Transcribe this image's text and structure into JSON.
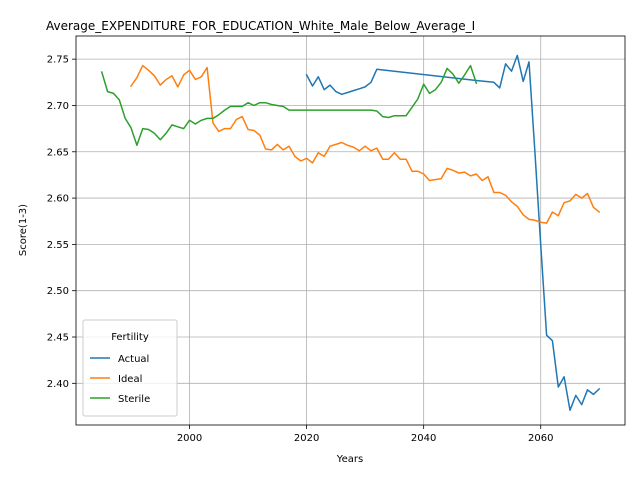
{
  "chart_data": {
    "type": "line",
    "title": "Average_EXPENDITURE_FOR_EDUCATION_White_Male_Below_Average_I",
    "xlabel": "Years",
    "ylabel": "Score(1-3)",
    "xlim": [
      2070,
      2075
    ],
    "ylim": [
      2.355,
      2.775
    ],
    "grid": true,
    "legend": {
      "title": "Fertility",
      "placement": "lower-left"
    },
    "x_ticks": [
      2000,
      2020,
      2040,
      2060
    ],
    "y_ticks": [
      2.4,
      2.45,
      2.5,
      2.55,
      2.6,
      2.65,
      2.7,
      2.75
    ],
    "x_tick_labels": [
      "2000",
      "2020",
      "2040",
      "2060"
    ],
    "y_tick_labels": [
      "2.40",
      "2.45",
      "2.50",
      "2.55",
      "2.60",
      "2.65",
      "2.70",
      "2.75"
    ],
    "series": [
      {
        "name": "Actual",
        "color": "#1f77b4",
        "points": [
          [
            2020,
            2.733
          ],
          [
            2021,
            2.721
          ],
          [
            2022,
            2.731
          ],
          [
            2023,
            2.717
          ],
          [
            2024,
            2.722
          ],
          [
            2025,
            2.715
          ],
          [
            2026,
            2.712
          ],
          [
            2027,
            2.714
          ],
          [
            2028,
            2.716
          ],
          [
            2029,
            2.718
          ],
          [
            2030,
            2.72
          ],
          [
            2031,
            2.725
          ],
          [
            2032,
            2.739
          ],
          [
            2049,
            2.727
          ],
          [
            2052,
            2.725
          ],
          [
            2053,
            2.719
          ],
          [
            2054,
            2.745
          ],
          [
            2055,
            2.737
          ],
          [
            2056,
            2.754
          ],
          [
            2057,
            2.726
          ],
          [
            2058,
            2.747
          ],
          [
            2059,
            2.65
          ],
          [
            2060,
            2.55
          ],
          [
            2061,
            2.452
          ],
          [
            2062,
            2.446
          ],
          [
            2063,
            2.396
          ],
          [
            2064,
            2.407
          ],
          [
            2065,
            2.371
          ],
          [
            2066,
            2.387
          ],
          [
            2067,
            2.377
          ],
          [
            2068,
            2.393
          ],
          [
            2069,
            2.388
          ],
          [
            2070,
            2.394
          ]
        ]
      },
      {
        "name": "Ideal",
        "color": "#ff7f0e",
        "points": [
          [
            1990,
            2.721
          ],
          [
            1991,
            2.73
          ],
          [
            1992,
            2.743
          ],
          [
            1993,
            2.738
          ],
          [
            1994,
            2.732
          ],
          [
            1995,
            2.722
          ],
          [
            1996,
            2.728
          ],
          [
            1997,
            2.732
          ],
          [
            1998,
            2.72
          ],
          [
            1999,
            2.733
          ],
          [
            2000,
            2.738
          ],
          [
            2001,
            2.728
          ],
          [
            2002,
            2.731
          ],
          [
            2003,
            2.741
          ],
          [
            2004,
            2.681
          ],
          [
            2005,
            2.672
          ],
          [
            2006,
            2.675
          ],
          [
            2007,
            2.675
          ],
          [
            2008,
            2.685
          ],
          [
            2009,
            2.688
          ],
          [
            2010,
            2.674
          ],
          [
            2011,
            2.673
          ],
          [
            2012,
            2.668
          ],
          [
            2013,
            2.653
          ],
          [
            2014,
            2.652
          ],
          [
            2015,
            2.658
          ],
          [
            2016,
            2.652
          ],
          [
            2017,
            2.656
          ],
          [
            2018,
            2.645
          ],
          [
            2019,
            2.64
          ],
          [
            2020,
            2.643
          ],
          [
            2021,
            2.638
          ],
          [
            2022,
            2.649
          ],
          [
            2023,
            2.645
          ],
          [
            2024,
            2.656
          ],
          [
            2025,
            2.658
          ],
          [
            2026,
            2.66
          ],
          [
            2027,
            2.657
          ],
          [
            2028,
            2.655
          ],
          [
            2029,
            2.651
          ],
          [
            2030,
            2.656
          ],
          [
            2031,
            2.651
          ],
          [
            2032,
            2.654
          ],
          [
            2033,
            2.642
          ],
          [
            2034,
            2.642
          ],
          [
            2035,
            2.649
          ],
          [
            2036,
            2.642
          ],
          [
            2037,
            2.642
          ],
          [
            2038,
            2.629
          ],
          [
            2039,
            2.629
          ],
          [
            2040,
            2.626
          ],
          [
            2041,
            2.619
          ],
          [
            2042,
            2.62
          ],
          [
            2043,
            2.621
          ],
          [
            2044,
            2.632
          ],
          [
            2045,
            2.63
          ],
          [
            2046,
            2.627
          ],
          [
            2047,
            2.628
          ],
          [
            2048,
            2.624
          ],
          [
            2049,
            2.626
          ],
          [
            2050,
            2.619
          ],
          [
            2051,
            2.623
          ],
          [
            2052,
            2.606
          ],
          [
            2053,
            2.606
          ],
          [
            2054,
            2.603
          ],
          [
            2055,
            2.596
          ],
          [
            2056,
            2.591
          ],
          [
            2057,
            2.582
          ],
          [
            2058,
            2.577
          ],
          [
            2059,
            2.576
          ],
          [
            2060,
            2.574
          ],
          [
            2061,
            2.573
          ],
          [
            2062,
            2.585
          ],
          [
            2063,
            2.581
          ],
          [
            2064,
            2.595
          ],
          [
            2065,
            2.597
          ],
          [
            2066,
            2.604
          ],
          [
            2067,
            2.6
          ],
          [
            2068,
            2.605
          ],
          [
            2069,
            2.59
          ],
          [
            2070,
            2.585
          ]
        ]
      },
      {
        "name": "Sterile",
        "color": "#2ca02c",
        "points": [
          [
            1985,
            2.736
          ],
          [
            1986,
            2.715
          ],
          [
            1987,
            2.713
          ],
          [
            1988,
            2.706
          ],
          [
            1989,
            2.686
          ],
          [
            1990,
            2.676
          ],
          [
            1991,
            2.657
          ],
          [
            1992,
            2.675
          ],
          [
            1993,
            2.674
          ],
          [
            1994,
            2.67
          ],
          [
            1995,
            2.663
          ],
          [
            1996,
            2.67
          ],
          [
            1997,
            2.679
          ],
          [
            1998,
            2.677
          ],
          [
            1999,
            2.675
          ],
          [
            2000,
            2.684
          ],
          [
            2001,
            2.68
          ],
          [
            2002,
            2.684
          ],
          [
            2003,
            2.686
          ],
          [
            2004,
            2.686
          ],
          [
            2005,
            2.69
          ],
          [
            2006,
            2.695
          ],
          [
            2007,
            2.699
          ],
          [
            2008,
            2.699
          ],
          [
            2009,
            2.699
          ],
          [
            2010,
            2.703
          ],
          [
            2011,
            2.7
          ],
          [
            2012,
            2.703
          ],
          [
            2013,
            2.703
          ],
          [
            2014,
            2.701
          ],
          [
            2015,
            2.7
          ],
          [
            2016,
            2.699
          ],
          [
            2017,
            2.695
          ],
          [
            2018,
            2.695
          ],
          [
            2019,
            2.695
          ],
          [
            2020,
            2.695
          ],
          [
            2031,
            2.695
          ],
          [
            2032,
            2.694
          ],
          [
            2033,
            2.688
          ],
          [
            2034,
            2.687
          ],
          [
            2035,
            2.689
          ],
          [
            2036,
            2.689
          ],
          [
            2037,
            2.689
          ],
          [
            2038,
            2.698
          ],
          [
            2039,
            2.707
          ],
          [
            2040,
            2.723
          ],
          [
            2041,
            2.713
          ],
          [
            2042,
            2.717
          ],
          [
            2043,
            2.725
          ],
          [
            2044,
            2.74
          ],
          [
            2045,
            2.734
          ],
          [
            2046,
            2.724
          ],
          [
            2047,
            2.733
          ],
          [
            2048,
            2.743
          ],
          [
            2049,
            2.724
          ]
        ]
      }
    ]
  }
}
